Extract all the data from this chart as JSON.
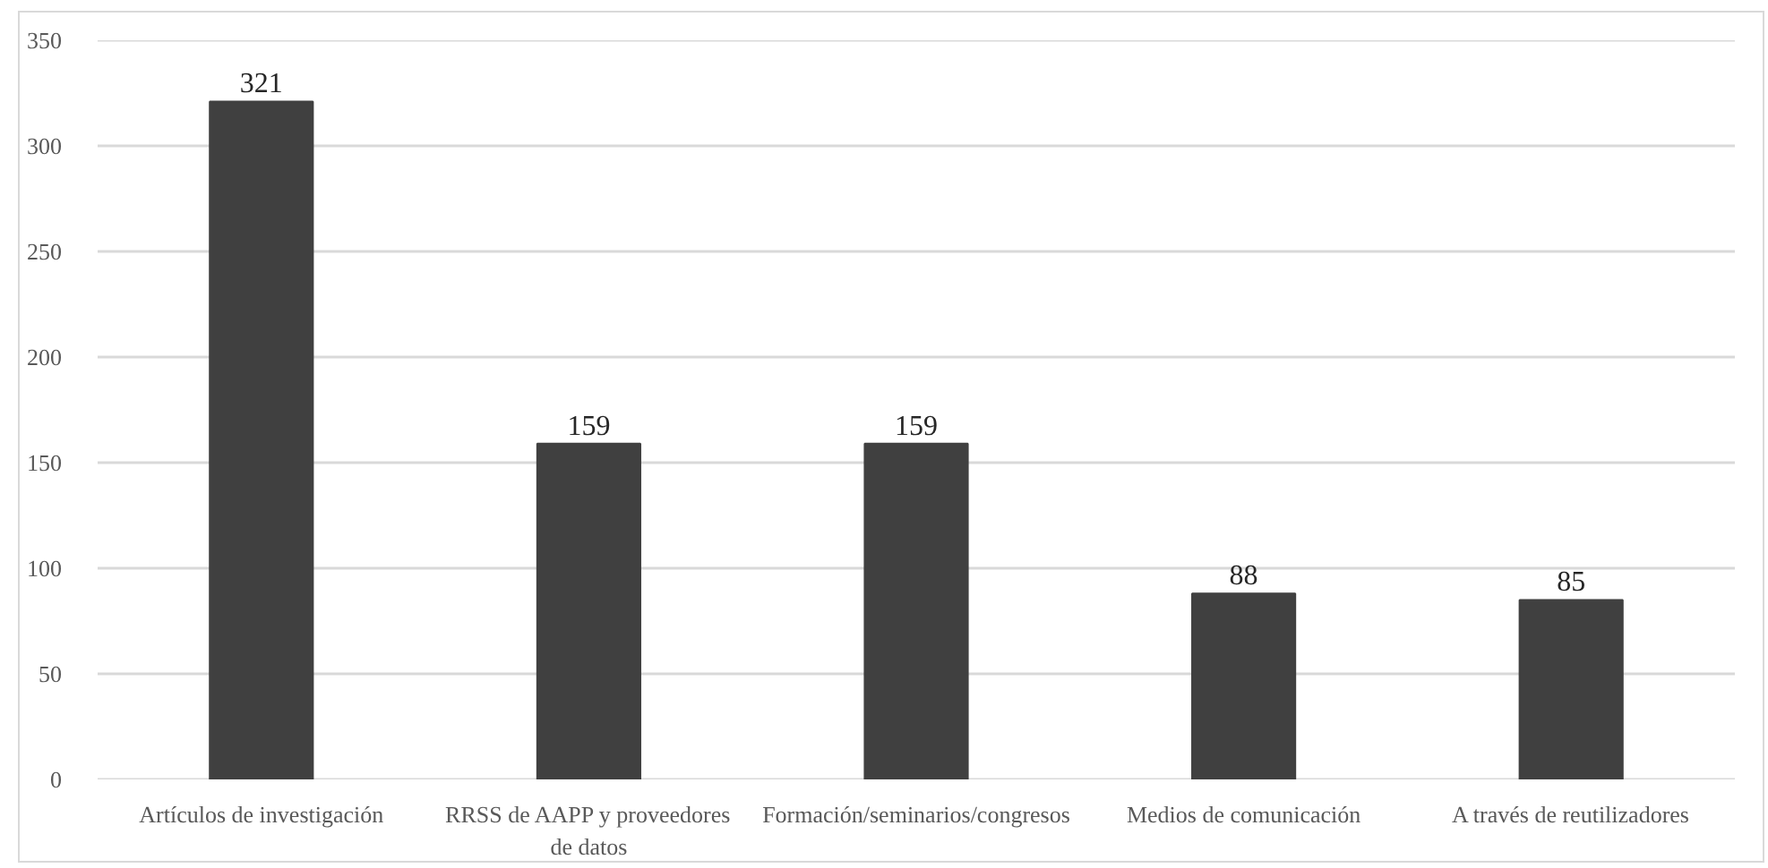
{
  "chart_data": {
    "type": "bar",
    "categories": [
      "Artículos de investigación",
      "RRSS de AAPP y proveedores de datos",
      "Formación/seminarios/congresos",
      "Medios de comunicación",
      "A través de reutilizadores"
    ],
    "values": [
      321,
      159,
      159,
      88,
      85
    ],
    "color": "#404040",
    "ylim": [
      0,
      350
    ],
    "yticks": [
      0,
      50,
      100,
      150,
      200,
      250,
      300,
      350
    ],
    "grid": "y",
    "data_labels": true
  }
}
